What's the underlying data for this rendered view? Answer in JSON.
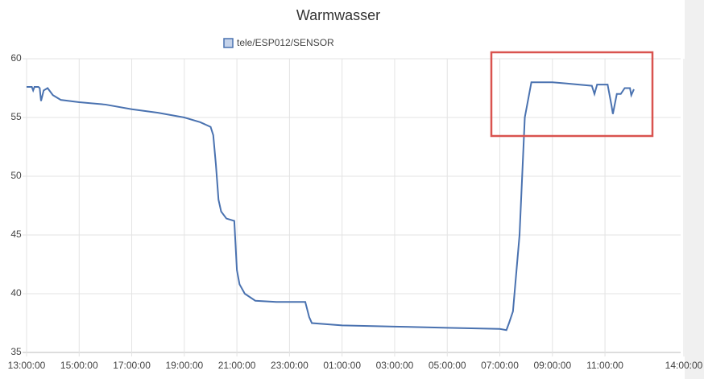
{
  "chart_data": {
    "type": "line",
    "title": "Warmwasser",
    "x": [
      0,
      0.2,
      0.25,
      0.3,
      0.45,
      0.5,
      0.55,
      0.65,
      0.8,
      1.0,
      1.3,
      2,
      3,
      4,
      5,
      6,
      6.6,
      7.0,
      7.1,
      7.2,
      7.3,
      7.4,
      7.6,
      7.9,
      8.0,
      8.1,
      8.3,
      8.7,
      9.5,
      10.6,
      10.75,
      10.85,
      12,
      14,
      16,
      18,
      18.25,
      18.35,
      18.5,
      18.75,
      18.95,
      19.2,
      19.5,
      20,
      20.5,
      21,
      21.5,
      21.6,
      21.7,
      22.0,
      22.1,
      22.25,
      22.3,
      22.45,
      22.6,
      22.75,
      22.95,
      23.0,
      23.1
    ],
    "series": [
      {
        "name": "tele/ESP012/SENSOR",
        "color": "#4a72b0",
        "values": [
          57.6,
          57.6,
          57.3,
          57.6,
          57.6,
          57.5,
          56.4,
          57.3,
          57.5,
          56.9,
          56.5,
          56.3,
          56.1,
          55.7,
          55.4,
          55.0,
          54.6,
          54.2,
          53.5,
          51.0,
          48.0,
          47.0,
          46.4,
          46.2,
          42.0,
          40.8,
          40.0,
          39.4,
          39.3,
          39.3,
          38.0,
          37.5,
          37.3,
          37.2,
          37.1,
          37.0,
          36.9,
          37.5,
          38.5,
          45.0,
          55.0,
          58.0,
          58.0,
          58.0,
          57.9,
          57.8,
          57.7,
          57.0,
          57.8,
          57.8,
          57.8,
          56.0,
          55.3,
          57.0,
          57.0,
          57.5,
          57.5,
          56.9,
          57.4
        ]
      }
    ],
    "xlim": [
      0,
      25
    ],
    "ylim": [
      35,
      60
    ],
    "xticks": [
      {
        "value": 0,
        "label": "13:00:00"
      },
      {
        "value": 2,
        "label": "15:00:00"
      },
      {
        "value": 4,
        "label": "17:00:00"
      },
      {
        "value": 6,
        "label": "19:00:00"
      },
      {
        "value": 8,
        "label": "21:00:00"
      },
      {
        "value": 10,
        "label": "23:00:00"
      },
      {
        "value": 12,
        "label": "01:00:00"
      },
      {
        "value": 14,
        "label": "03:00:00"
      },
      {
        "value": 16,
        "label": "05:00:00"
      },
      {
        "value": 18,
        "label": "07:00:00"
      },
      {
        "value": 20,
        "label": "09:00:00"
      },
      {
        "value": 22,
        "label": "11:00:00"
      },
      {
        "value": 25,
        "label": "14:00:00"
      }
    ],
    "yticks": [
      35,
      40,
      45,
      50,
      55,
      60
    ],
    "grid": true
  }
}
